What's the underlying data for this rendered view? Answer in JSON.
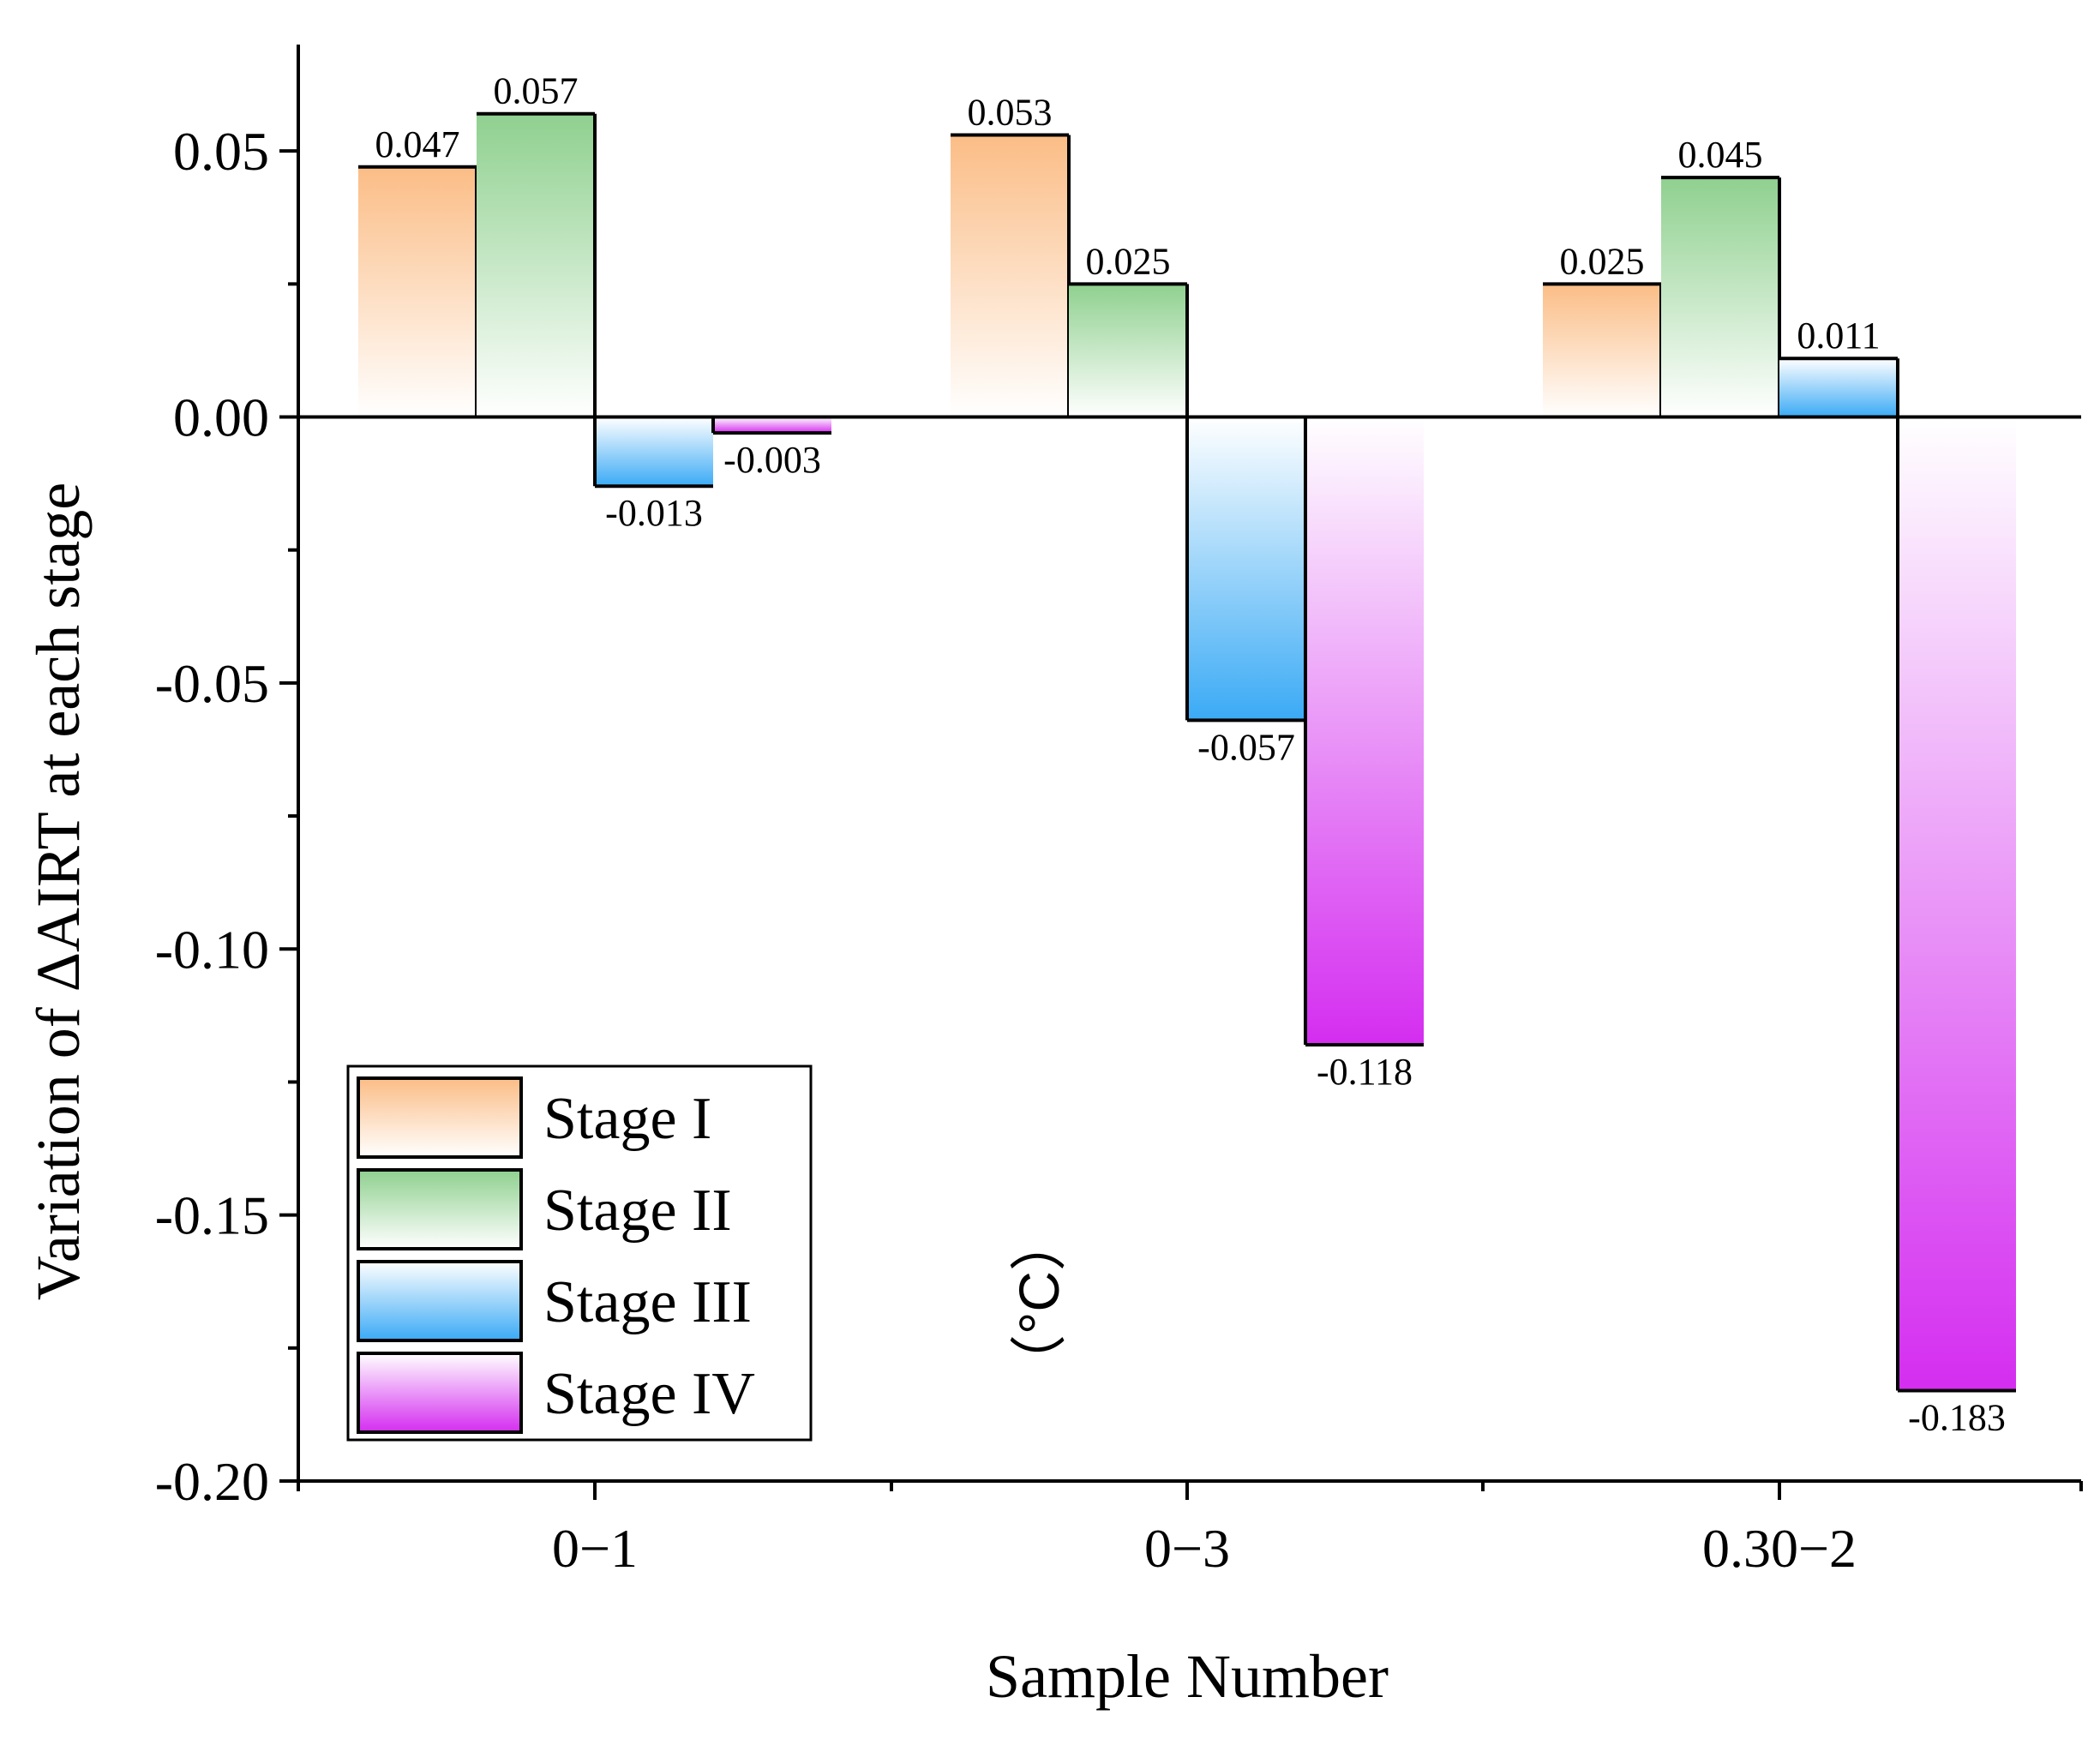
{
  "chart_data": {
    "type": "bar",
    "title": "",
    "xlabel": "Sample Number",
    "ylabel": "Variation of ΔAIRT at each stage",
    "unit_label": "（°C）",
    "categories": [
      "0−1",
      "0−3",
      "0.30−2"
    ],
    "series": [
      {
        "name": "Stage I",
        "values": [
          0.047,
          0.053,
          0.025
        ],
        "labels": [
          "0.047",
          "0.053",
          "0.025"
        ]
      },
      {
        "name": "Stage II",
        "values": [
          0.057,
          0.025,
          0.045
        ],
        "labels": [
          "0.057",
          "0.025",
          "0.045"
        ]
      },
      {
        "name": "Stage III",
        "values": [
          -0.013,
          -0.057,
          0.011
        ],
        "labels": [
          "-0.013",
          "-0.057",
          "0.011"
        ]
      },
      {
        "name": "Stage IV",
        "values": [
          -0.003,
          -0.118,
          -0.183
        ],
        "labels": [
          "-0.003",
          "-0.118",
          "-0.183"
        ]
      }
    ],
    "ylim": [
      -0.2,
      0.07
    ],
    "yticks": [
      0.05,
      0.0,
      -0.05,
      -0.1,
      -0.15,
      -0.2
    ],
    "ytick_labels": [
      "0.05",
      "0.00",
      "-0.05",
      "-0.10",
      "-0.15",
      "-0.20"
    ],
    "legend_position": "bottom-left",
    "grid": false
  },
  "colors": {
    "stage_i": "#fbbd86",
    "stage_ii": "#8fd08f",
    "stage_iii": "#3aaaf5",
    "stage_iv": "#d42df0"
  }
}
